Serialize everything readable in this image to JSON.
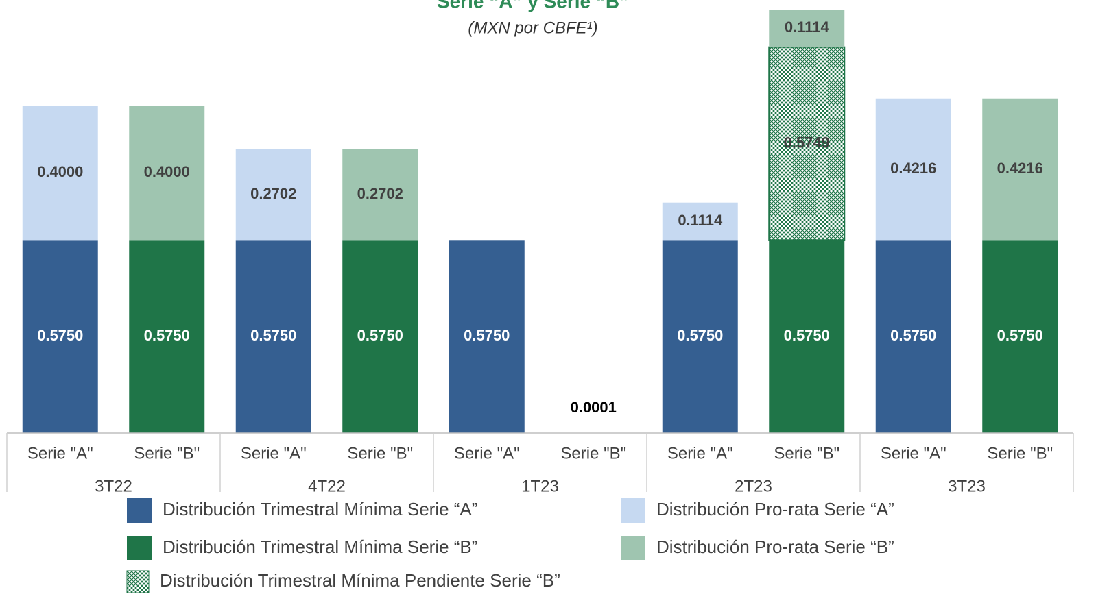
{
  "chart_data": {
    "type": "bar",
    "stacked": true,
    "title": "Serie “A” y Serie “B”",
    "subtitle": "(MXN por CBFE¹)",
    "categories": [
      "Serie \"A\"",
      "Serie \"B\"",
      "Serie \"A\"",
      "Serie \"B\"",
      "Serie \"A\"",
      "Serie \"B\"",
      "Serie \"A\"",
      "Serie \"B\"",
      "Serie \"A\"",
      "Serie \"B\""
    ],
    "groups": [
      "3T22",
      "4T22",
      "1T23",
      "2T23",
      "3T23"
    ],
    "ylim": [
      0,
      1.29
    ],
    "series": [
      {
        "name": "Distribución Trimestral Mínima Serie “A”",
        "color": "#355f91",
        "label_color": "#ffffff",
        "values": [
          0.575,
          null,
          0.575,
          null,
          0.575,
          0.0001,
          0.575,
          null,
          0.575,
          null
        ],
        "value_labels": [
          "0.5750",
          null,
          "0.5750",
          null,
          "0.5750",
          "0.0001",
          "0.5750",
          null,
          "0.5750",
          null
        ]
      },
      {
        "name": "Distribución Trimestral Mínima Serie “B”",
        "color": "#1f7548",
        "label_color": "#ffffff",
        "values": [
          null,
          0.575,
          null,
          0.575,
          null,
          null,
          null,
          0.575,
          null,
          0.575
        ],
        "value_labels": [
          null,
          "0.5750",
          null,
          "0.5750",
          null,
          null,
          null,
          "0.5750",
          null,
          "0.5750"
        ]
      },
      {
        "name": "Distribución Trimestral Mínima Pendiente Serie “B”",
        "color": "#1f7548",
        "pattern": "hatch",
        "label_color": "#404040",
        "values": [
          null,
          null,
          null,
          null,
          null,
          null,
          null,
          0.5749,
          null,
          null
        ],
        "value_labels": [
          null,
          null,
          null,
          null,
          null,
          null,
          null,
          "0.5749",
          null,
          null
        ]
      },
      {
        "name": "Distribución Pro-rata Serie “A”",
        "color": "#c6d9f1",
        "label_color": "#404040",
        "values": [
          0.4,
          null,
          0.2702,
          null,
          null,
          null,
          0.1114,
          null,
          0.4216,
          null
        ],
        "value_labels": [
          "0.4000",
          null,
          "0.2702",
          null,
          null,
          null,
          "0.1114",
          null,
          "0.4216",
          null
        ]
      },
      {
        "name": "Distribución Pro-rata Serie “B”",
        "color": "#9fc5b0",
        "label_color": "#404040",
        "values": [
          null,
          0.4,
          null,
          0.2702,
          null,
          null,
          null,
          0.1114,
          null,
          0.4216
        ],
        "value_labels": [
          null,
          "0.4000",
          null,
          "0.2702",
          null,
          null,
          null,
          "0.1114",
          null,
          "0.4216"
        ]
      }
    ]
  }
}
